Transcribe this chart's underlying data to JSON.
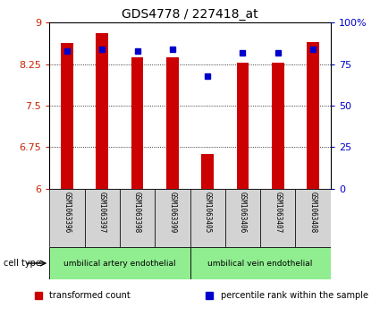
{
  "title": "GDS4778 / 227418_at",
  "samples": [
    "GSM1063396",
    "GSM1063397",
    "GSM1063398",
    "GSM1063399",
    "GSM1063405",
    "GSM1063406",
    "GSM1063407",
    "GSM1063408"
  ],
  "red_values": [
    8.63,
    8.82,
    8.38,
    8.38,
    6.62,
    8.28,
    8.27,
    8.65
  ],
  "blue_values_pct": [
    83,
    84,
    83,
    84,
    68,
    82,
    82,
    84
  ],
  "ylim": [
    6,
    9
  ],
  "y_ticks": [
    6,
    6.75,
    7.5,
    8.25,
    9
  ],
  "y2_ticks": [
    0,
    25,
    50,
    75,
    100
  ],
  "y2_tick_labels": [
    "0",
    "25",
    "50",
    "75",
    "100%"
  ],
  "ytick_labels": [
    "6",
    "6.75",
    "7.5",
    "8.25",
    "9"
  ],
  "bar_color": "#cc0000",
  "dot_color": "#0000cc",
  "bar_width": 0.35,
  "legend_items": [
    {
      "label": "transformed count",
      "color": "#cc0000"
    },
    {
      "label": "percentile rank within the sample",
      "color": "#0000cc"
    }
  ],
  "axis_label_color_left": "#cc2200",
  "axis_label_color_right": "#0000cc",
  "bg_color": "#ffffff",
  "plot_bg": "#ffffff",
  "cell_type_label": "cell type",
  "tick_label_fontsize": 8,
  "title_fontsize": 10,
  "cell_type_groups": [
    {
      "label": "umbilical artery endothelial",
      "indices": [
        0,
        1,
        2,
        3
      ]
    },
    {
      "label": "umbilical vein endothelial",
      "indices": [
        4,
        5,
        6,
        7
      ]
    }
  ]
}
